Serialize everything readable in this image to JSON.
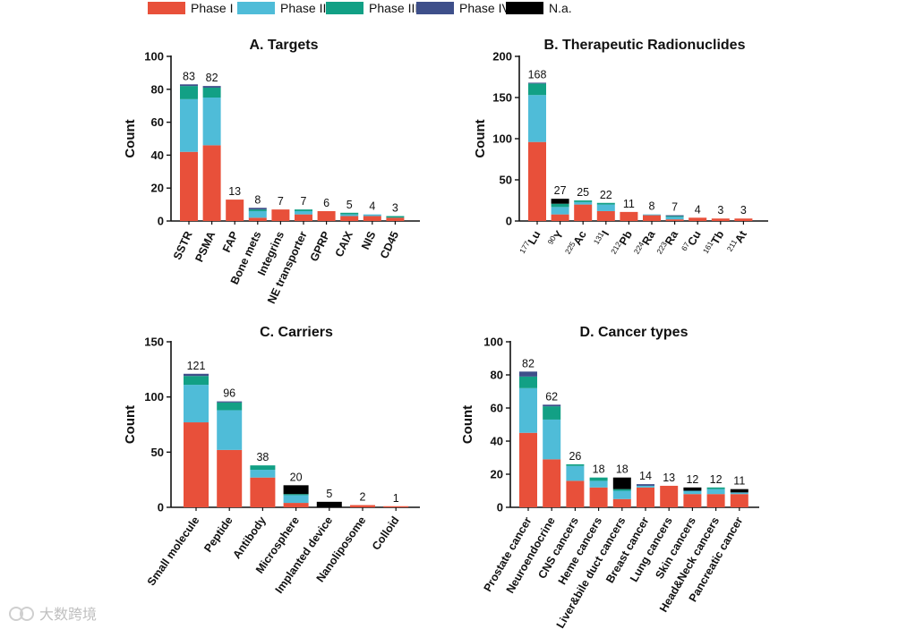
{
  "legend": {
    "items": [
      {
        "name": "Phase I",
        "color": "#e8503a"
      },
      {
        "name": "Phase II",
        "color": "#4fbcd8"
      },
      {
        "name": "Phase III",
        "color": "#12a085"
      },
      {
        "name": "Phase IV",
        "color": "#3e4f8a"
      },
      {
        "name": "N.a.",
        "color": "#000000"
      }
    ]
  },
  "watermark": {
    "text": "大数跨境"
  },
  "chart_data": [
    {
      "type": "bar",
      "stacked": true,
      "title": "A. Targets",
      "ylabel": "Count",
      "ylim": [
        0,
        100
      ],
      "yticks": [
        0,
        20,
        40,
        60,
        80,
        100
      ],
      "categories": [
        {
          "label": "SSTR"
        },
        {
          "label": "PSMA"
        },
        {
          "label": "FAP"
        },
        {
          "label": "Bone mets"
        },
        {
          "label": "Integrins"
        },
        {
          "label": "NE transporter"
        },
        {
          "label": "GPRP"
        },
        {
          "label": "CAIX"
        },
        {
          "label": "NIS"
        },
        {
          "label": "CD45"
        }
      ],
      "totals": [
        "83",
        "82",
        "13",
        "8",
        "7",
        "7",
        "6",
        "5",
        "4",
        "3"
      ],
      "series": [
        {
          "name": "Phase I",
          "values": [
            42,
            46,
            13,
            2,
            7,
            4,
            6,
            3,
            3,
            2
          ]
        },
        {
          "name": "Phase II",
          "values": [
            32,
            29,
            0,
            4,
            0,
            2,
            0,
            1,
            1,
            0
          ]
        },
        {
          "name": "Phase III",
          "values": [
            8,
            6,
            0,
            1,
            0,
            1,
            0,
            1,
            0,
            1
          ]
        },
        {
          "name": "Phase IV",
          "values": [
            1,
            1,
            0,
            1,
            0,
            0,
            0,
            0,
            0,
            0
          ]
        },
        {
          "name": "N.a.",
          "values": [
            0,
            0,
            0,
            0,
            0,
            0,
            0,
            0,
            0,
            0
          ]
        }
      ]
    },
    {
      "type": "bar",
      "stacked": true,
      "title": "B. Therapeutic Radionuclides",
      "ylabel": "Count",
      "ylim": [
        0,
        200
      ],
      "yticks": [
        0,
        50,
        100,
        150,
        200
      ],
      "categories": [
        {
          "sup": "177",
          "label": "Lu"
        },
        {
          "sup": "90",
          "label": "Y"
        },
        {
          "sup": "225",
          "label": "Ac"
        },
        {
          "sup": "131",
          "label": "I"
        },
        {
          "sup": "212",
          "label": "Pb"
        },
        {
          "sup": "224",
          "label": "Ra"
        },
        {
          "sup": "223",
          "label": "Ra"
        },
        {
          "sup": "67",
          "label": "Cu"
        },
        {
          "sup": "161",
          "label": "Tb"
        },
        {
          "sup": "211",
          "label": "At"
        }
      ],
      "totals": [
        "168",
        "27",
        "25",
        "22",
        "11",
        "8",
        "7",
        "4",
        "3",
        "3"
      ],
      "series": [
        {
          "name": "Phase I",
          "values": [
            96,
            8,
            20,
            12,
            11,
            7,
            2,
            4,
            3,
            3
          ]
        },
        {
          "name": "Phase II",
          "values": [
            57,
            9,
            3,
            8,
            0,
            1,
            3,
            0,
            0,
            0
          ]
        },
        {
          "name": "Phase III",
          "values": [
            14,
            4,
            2,
            2,
            0,
            0,
            1,
            0,
            0,
            0
          ]
        },
        {
          "name": "Phase IV",
          "values": [
            1,
            0,
            0,
            0,
            0,
            0,
            1,
            0,
            0,
            0
          ]
        },
        {
          "name": "N.a.",
          "values": [
            0,
            6,
            0,
            0,
            0,
            0,
            0,
            0,
            0,
            0
          ]
        }
      ]
    },
    {
      "type": "bar",
      "stacked": true,
      "title": "C. Carriers",
      "ylabel": "Count",
      "ylim": [
        0,
        150
      ],
      "yticks": [
        0,
        50,
        100,
        150
      ],
      "categories": [
        {
          "label": "Small molecule"
        },
        {
          "label": "Peptide"
        },
        {
          "label": "Antibody"
        },
        {
          "label": "Microsphere"
        },
        {
          "label": "Implanted device"
        },
        {
          "label": "Nanoliposome"
        },
        {
          "label": "Colloid"
        }
      ],
      "totals": [
        "121",
        "96",
        "38",
        "20",
        "5",
        "2",
        "1"
      ],
      "series": [
        {
          "name": "Phase I",
          "values": [
            77,
            52,
            27,
            4,
            0,
            2,
            1
          ]
        },
        {
          "name": "Phase II",
          "values": [
            34,
            36,
            7,
            7,
            0,
            0,
            0
          ]
        },
        {
          "name": "Phase III",
          "values": [
            8,
            7,
            4,
            1,
            0,
            0,
            0
          ]
        },
        {
          "name": "Phase IV",
          "values": [
            2,
            1,
            0,
            0,
            0,
            0,
            0
          ]
        },
        {
          "name": "N.a.",
          "values": [
            0,
            0,
            0,
            8,
            5,
            0,
            0
          ]
        }
      ]
    },
    {
      "type": "bar",
      "stacked": true,
      "title": "D. Cancer types",
      "ylabel": "Count",
      "ylim": [
        0,
        100
      ],
      "yticks": [
        0,
        20,
        40,
        60,
        80,
        100
      ],
      "categories": [
        {
          "label": "Prostate cancer"
        },
        {
          "label": "Neuroendocrine"
        },
        {
          "label": "CNS cancers"
        },
        {
          "label": "Heme cancers"
        },
        {
          "label": "Liver&bile duct cancers"
        },
        {
          "label": "Breast cancer"
        },
        {
          "label": "Lung cancers"
        },
        {
          "label": "Skin cancers"
        },
        {
          "label": "Head&Neck cancers"
        },
        {
          "label": "Pancreatic cancer"
        }
      ],
      "totals": [
        "82",
        "62",
        "26",
        "18",
        "18",
        "14",
        "13",
        "12",
        "12",
        "11"
      ],
      "series": [
        {
          "name": "Phase I",
          "values": [
            45,
            29,
            16,
            12,
            5,
            12,
            13,
            8,
            8,
            8
          ]
        },
        {
          "name": "Phase II",
          "values": [
            27,
            24,
            9,
            4,
            5,
            1,
            0,
            2,
            3,
            1
          ]
        },
        {
          "name": "Phase III",
          "values": [
            7,
            8,
            1,
            2,
            1,
            0,
            0,
            0,
            1,
            0
          ]
        },
        {
          "name": "Phase IV",
          "values": [
            3,
            1,
            0,
            0,
            0,
            1,
            0,
            0,
            0,
            0
          ]
        },
        {
          "name": "N.a.",
          "values": [
            0,
            0,
            0,
            0,
            7,
            0,
            0,
            2,
            0,
            2
          ]
        }
      ]
    }
  ]
}
